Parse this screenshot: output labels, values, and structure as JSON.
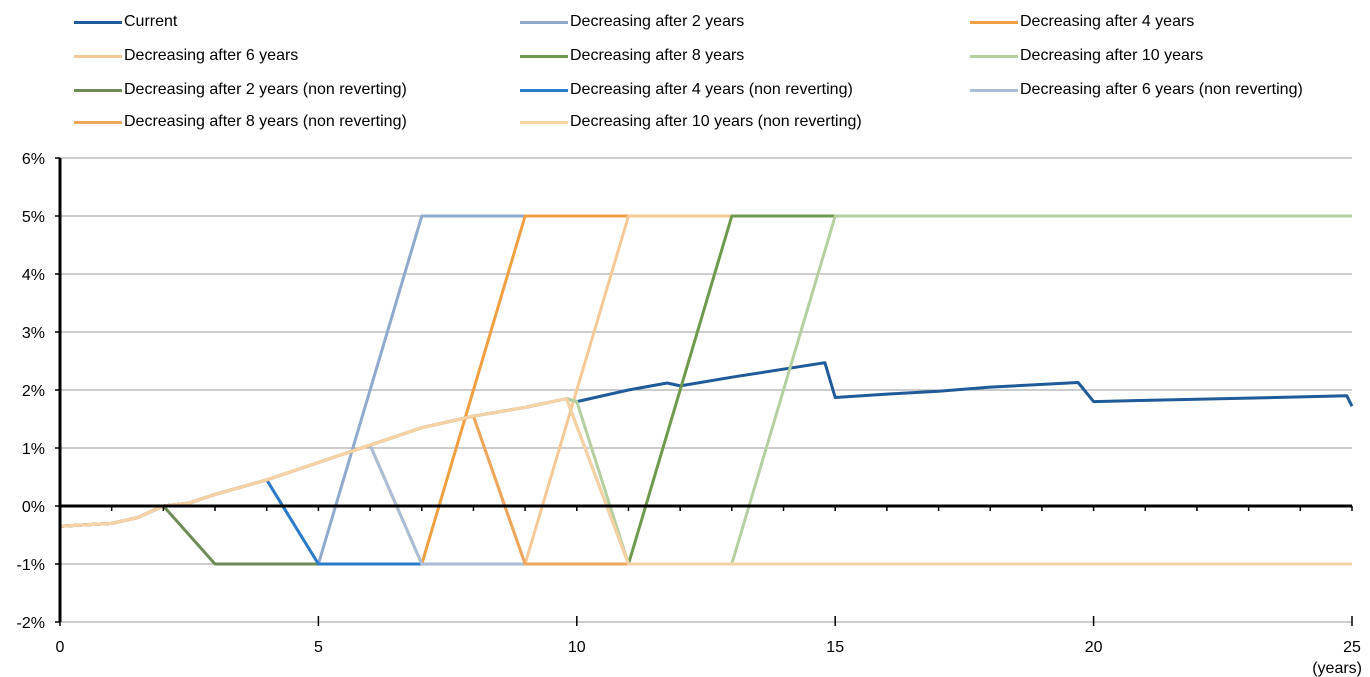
{
  "chart_data": {
    "type": "line",
    "xlim": [
      0,
      25
    ],
    "ylim": [
      -2,
      6
    ],
    "x_ticks": [
      "0",
      "5",
      "10",
      "15",
      "20",
      "25"
    ],
    "y_ticks": [
      "-2%",
      "-1%",
      "0%",
      "1%",
      "2%",
      "3%",
      "4%",
      "5%",
      "6%"
    ],
    "x_unit_label": "(years)",
    "grid": "horizontal",
    "legend_position": "top",
    "series": [
      {
        "name": "Current",
        "color": "#1F5B99",
        "width": 3,
        "points": [
          [
            0,
            -0.35
          ],
          [
            1,
            -0.3
          ],
          [
            1.5,
            -0.2
          ],
          [
            2,
            0
          ],
          [
            2.5,
            0.05
          ],
          [
            3,
            0.2
          ],
          [
            4,
            0.45
          ],
          [
            5,
            0.75
          ],
          [
            6,
            1.05
          ],
          [
            7,
            1.35
          ],
          [
            8,
            1.55
          ],
          [
            9,
            1.7
          ],
          [
            9.8,
            1.85
          ],
          [
            10,
            1.8
          ],
          [
            11,
            2
          ],
          [
            11.75,
            2.12
          ],
          [
            12,
            2.07
          ],
          [
            13,
            2.22
          ],
          [
            14.8,
            2.47
          ],
          [
            15,
            1.87
          ],
          [
            16,
            1.93
          ],
          [
            17,
            1.98
          ],
          [
            18,
            2.05
          ],
          [
            19.7,
            2.13
          ],
          [
            20,
            1.8
          ],
          [
            21,
            1.82
          ],
          [
            22,
            1.84
          ],
          [
            24.9,
            1.9
          ],
          [
            25,
            1.72
          ]
        ]
      },
      {
        "name": "Decreasing after 2 years",
        "color": "#8FAACC",
        "width": 3,
        "points": [
          [
            0,
            -0.35
          ],
          [
            1,
            -0.3
          ],
          [
            1.5,
            -0.2
          ],
          [
            2,
            0
          ],
          [
            2.5,
            0.05
          ],
          [
            3,
            0.2
          ],
          [
            4,
            0.45
          ],
          [
            5,
            -1
          ],
          [
            7,
            5
          ],
          [
            25,
            5
          ]
        ]
      },
      {
        "name": "Decreasing after 4 years",
        "color": "#F0A040",
        "width": 3,
        "points": [
          [
            0,
            -0.35
          ],
          [
            1,
            -0.3
          ],
          [
            1.5,
            -0.2
          ],
          [
            2,
            0
          ],
          [
            2.5,
            0.05
          ],
          [
            3,
            0.2
          ],
          [
            4,
            0.45
          ],
          [
            5,
            0.75
          ],
          [
            6,
            1.05
          ],
          [
            7,
            -1
          ],
          [
            9,
            5
          ],
          [
            25,
            5
          ]
        ]
      },
      {
        "name": "Decreasing after 6 years",
        "color": "#F5C995",
        "width": 3,
        "points": [
          [
            0,
            -0.35
          ],
          [
            1,
            -0.3
          ],
          [
            1.5,
            -0.2
          ],
          [
            2,
            0
          ],
          [
            2.5,
            0.05
          ],
          [
            3,
            0.2
          ],
          [
            4,
            0.45
          ],
          [
            5,
            0.75
          ],
          [
            6,
            1.05
          ],
          [
            7,
            1.35
          ],
          [
            8,
            1.55
          ],
          [
            9,
            -1
          ],
          [
            11,
            5
          ],
          [
            25,
            5
          ]
        ]
      },
      {
        "name": "Decreasing after 8 years",
        "color": "#6E9A4E",
        "width": 3,
        "points": [
          [
            0,
            -0.35
          ],
          [
            1,
            -0.3
          ],
          [
            1.5,
            -0.2
          ],
          [
            2,
            0
          ],
          [
            2.5,
            0.05
          ],
          [
            3,
            0.2
          ],
          [
            4,
            0.45
          ],
          [
            5,
            0.75
          ],
          [
            6,
            1.05
          ],
          [
            7,
            1.35
          ],
          [
            8,
            1.55
          ],
          [
            9,
            1.7
          ],
          [
            9.8,
            1.85
          ],
          [
            11,
            -1
          ],
          [
            13,
            5
          ],
          [
            25,
            5
          ]
        ]
      },
      {
        "name": "Decreasing after 10 years",
        "color": "#B5CFA0",
        "width": 3,
        "points": [
          [
            0,
            -0.35
          ],
          [
            1,
            -0.3
          ],
          [
            1.5,
            -0.2
          ],
          [
            2,
            0
          ],
          [
            2.5,
            0.05
          ],
          [
            3,
            0.2
          ],
          [
            4,
            0.45
          ],
          [
            5,
            0.75
          ],
          [
            6,
            1.05
          ],
          [
            7,
            1.35
          ],
          [
            8,
            1.55
          ],
          [
            9,
            1.7
          ],
          [
            9.8,
            1.85
          ],
          [
            10,
            1.8
          ],
          [
            11,
            -1
          ],
          [
            13,
            -1
          ],
          [
            15,
            5
          ],
          [
            25,
            5
          ]
        ]
      },
      {
        "name": "Decreasing after 2 years (non reverting)",
        "color": "#6E8B55",
        "width": 3,
        "points": [
          [
            0,
            -0.35
          ],
          [
            1,
            -0.3
          ],
          [
            1.5,
            -0.2
          ],
          [
            2,
            0
          ],
          [
            3,
            -1
          ],
          [
            25,
            -1
          ]
        ]
      },
      {
        "name": "Decreasing after 4 years (non reverting)",
        "color": "#2A7BC8",
        "width": 3,
        "points": [
          [
            0,
            -0.35
          ],
          [
            1,
            -0.3
          ],
          [
            1.5,
            -0.2
          ],
          [
            2,
            0
          ],
          [
            2.5,
            0.05
          ],
          [
            3,
            0.2
          ],
          [
            4,
            0.45
          ],
          [
            5,
            -1
          ],
          [
            25,
            -1
          ]
        ]
      },
      {
        "name": "Decreasing after 6 years (non reverting)",
        "color": "#A9BED6",
        "width": 3,
        "points": [
          [
            0,
            -0.35
          ],
          [
            1,
            -0.3
          ],
          [
            1.5,
            -0.2
          ],
          [
            2,
            0
          ],
          [
            2.5,
            0.05
          ],
          [
            3,
            0.2
          ],
          [
            4,
            0.45
          ],
          [
            5,
            0.75
          ],
          [
            6,
            1.05
          ],
          [
            7,
            -1
          ],
          [
            25,
            -1
          ]
        ]
      },
      {
        "name": "Decreasing after 8 years (non reverting)",
        "color": "#EDA65A",
        "width": 3,
        "points": [
          [
            0,
            -0.35
          ],
          [
            1,
            -0.3
          ],
          [
            1.5,
            -0.2
          ],
          [
            2,
            0
          ],
          [
            2.5,
            0.05
          ],
          [
            3,
            0.2
          ],
          [
            4,
            0.45
          ],
          [
            5,
            0.75
          ],
          [
            6,
            1.05
          ],
          [
            7,
            1.35
          ],
          [
            8,
            1.55
          ],
          [
            9,
            -1
          ],
          [
            25,
            -1
          ]
        ]
      },
      {
        "name": "Decreasing after 10 years (non reverting)",
        "color": "#F7D2A4",
        "width": 3,
        "points": [
          [
            0,
            -0.35
          ],
          [
            1,
            -0.3
          ],
          [
            1.5,
            -0.2
          ],
          [
            2,
            0
          ],
          [
            2.5,
            0.05
          ],
          [
            3,
            0.2
          ],
          [
            4,
            0.45
          ],
          [
            5,
            0.75
          ],
          [
            6,
            1.05
          ],
          [
            7,
            1.35
          ],
          [
            8,
            1.55
          ],
          [
            9,
            1.7
          ],
          [
            9.8,
            1.85
          ],
          [
            11,
            -1
          ],
          [
            25,
            -1
          ]
        ]
      }
    ]
  }
}
